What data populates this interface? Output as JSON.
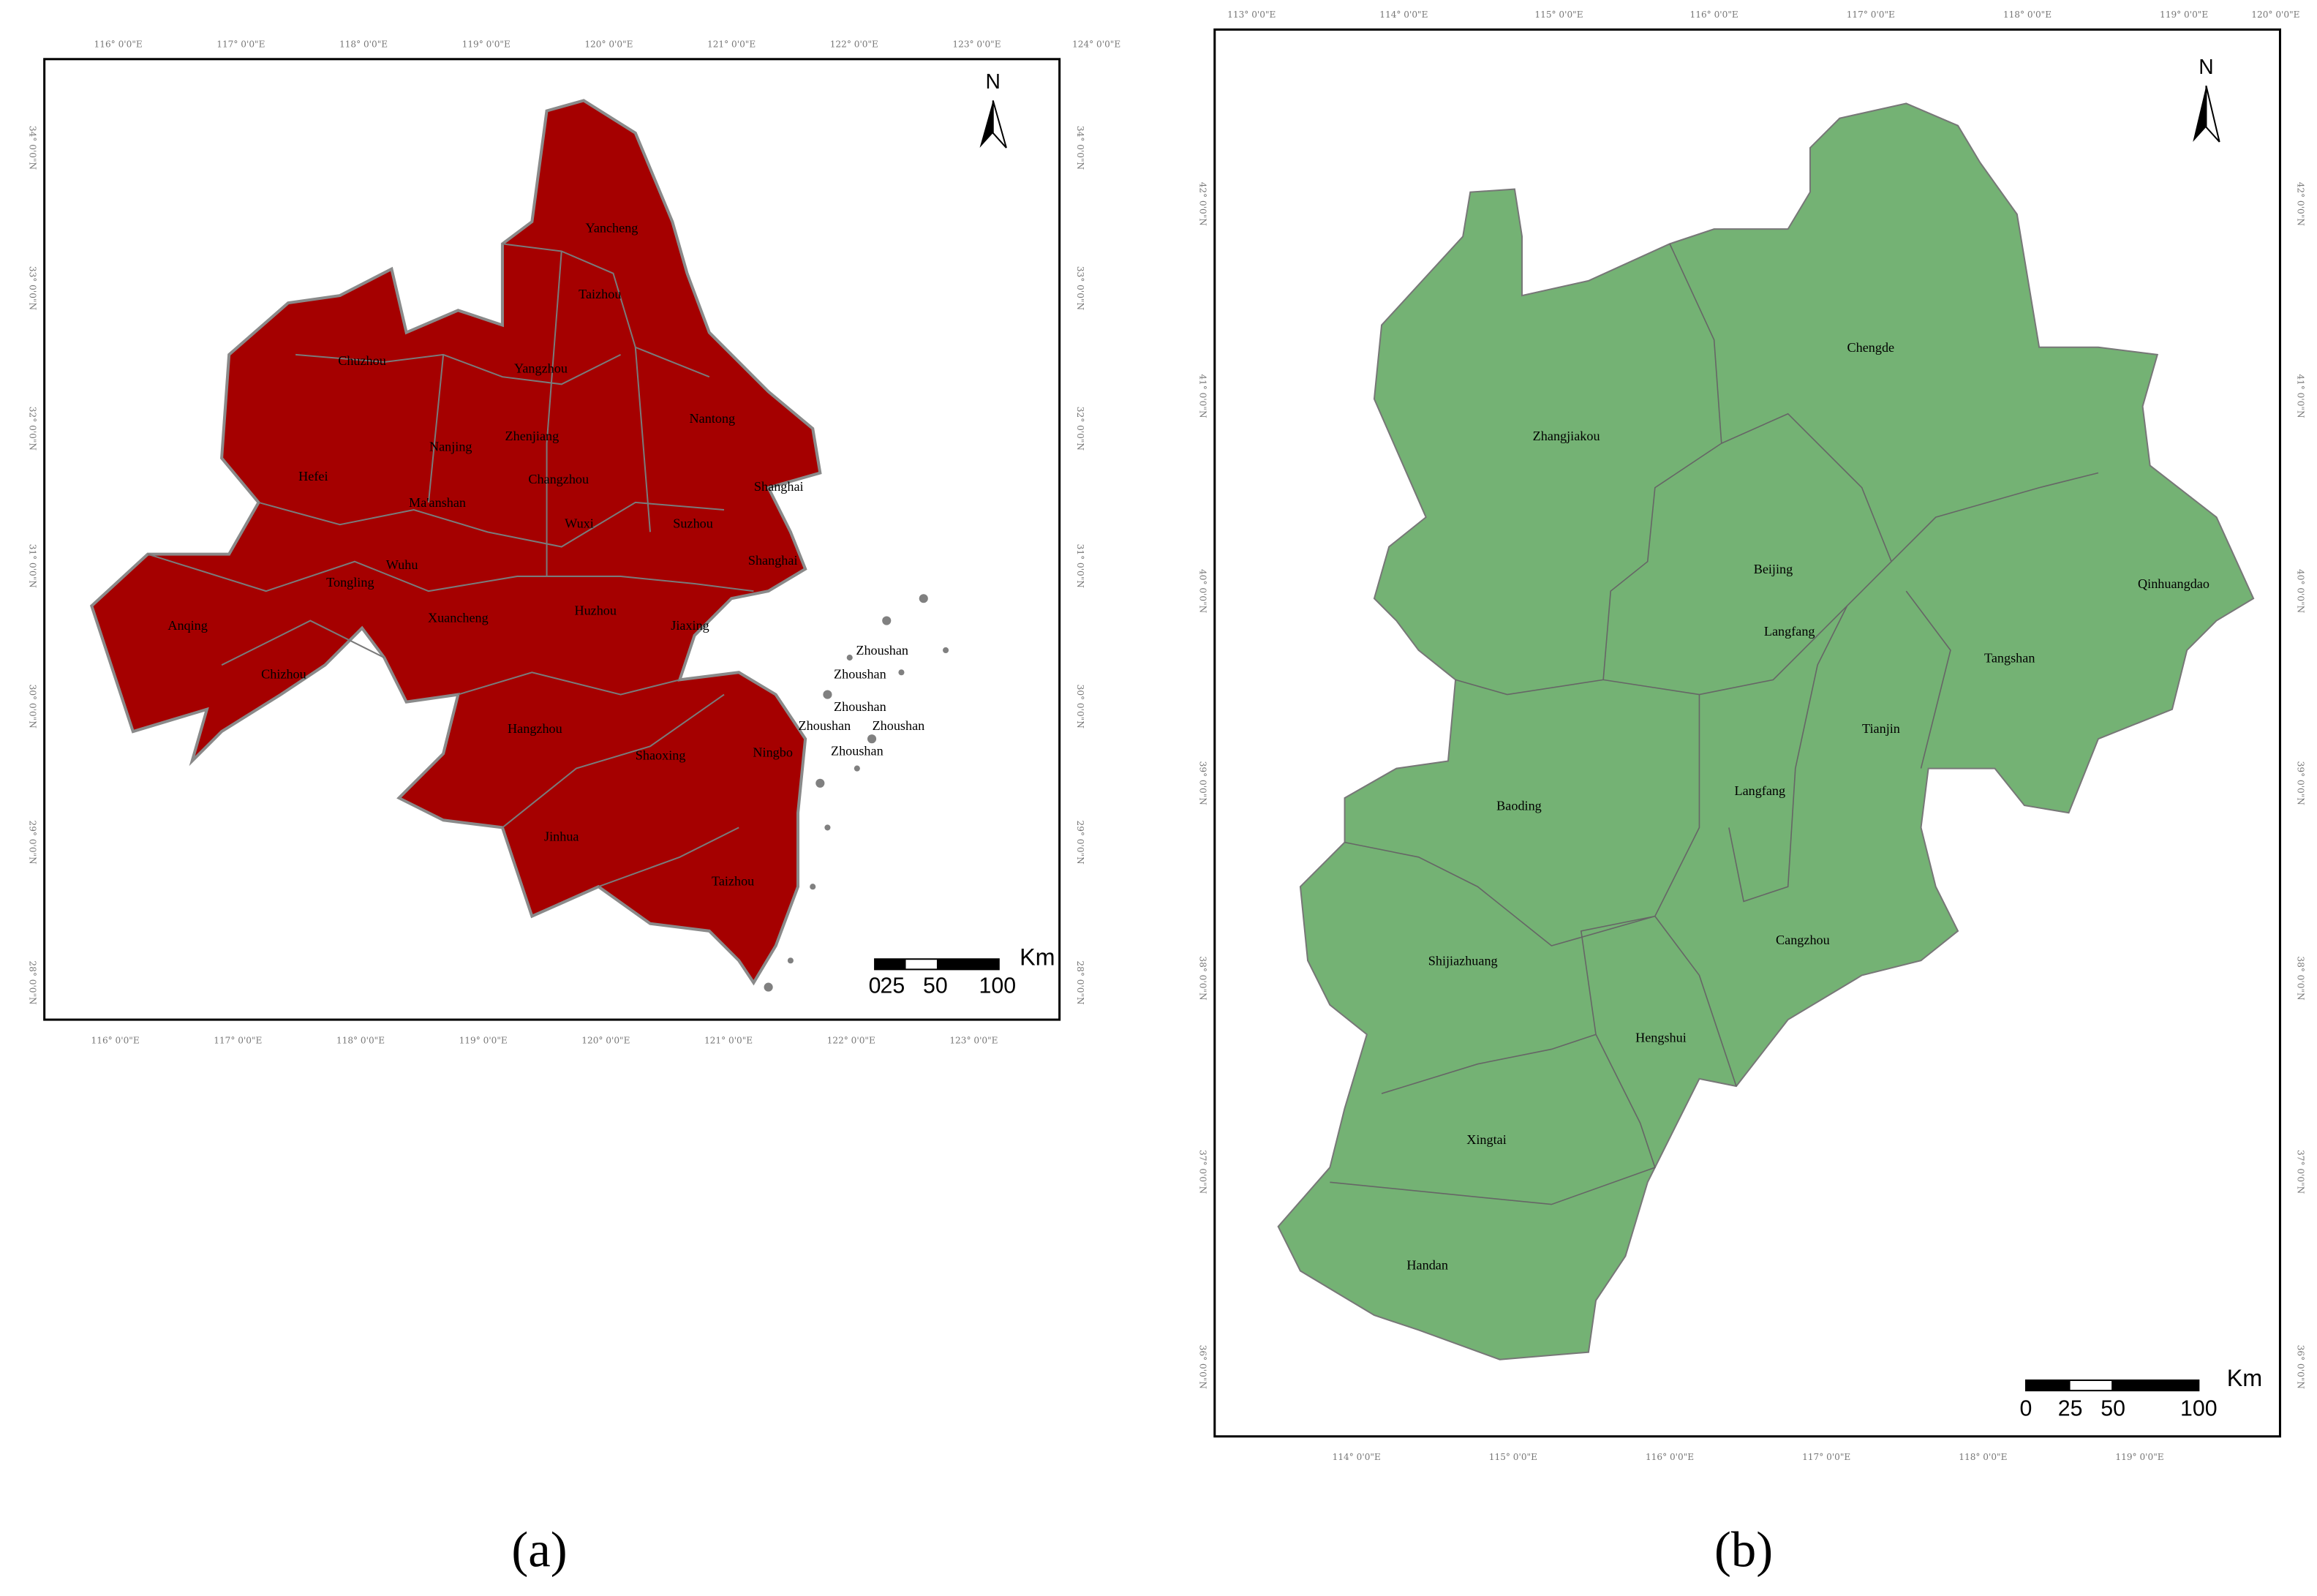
{
  "maps": [
    {
      "caption": "(a)",
      "top_ticks": [
        "116° 0'0\"E",
        "117° 0'0\"E",
        "118° 0'0\"E",
        "119° 0'0\"E",
        "120° 0'0\"E",
        "121° 0'0\"E",
        "122° 0'0\"E",
        "123° 0'0\"E",
        "124° 0'0\"E"
      ],
      "bottom_ticks": [
        "116° 0'0\"E",
        "117° 0'0\"E",
        "118° 0'0\"E",
        "119° 0'0\"E",
        "120° 0'0\"E",
        "121° 0'0\"E",
        "122° 0'0\"E",
        "123° 0'0\"E"
      ],
      "left_ticks": [
        "34° 0'0\"N",
        "33° 0'0\"N",
        "32° 0'0\"N",
        "31° 0'0\"N",
        "30° 0'0\"N",
        "29° 0'0\"N",
        "28° 0'0\"N"
      ],
      "right_ticks": [
        "34° 0'0\"N",
        "33° 0'0\"N",
        "32° 0'0\"N",
        "31° 0'0\"N",
        "30° 0'0\"N",
        "29° 0'0\"N",
        "28° 0'0\"N"
      ],
      "north": "N",
      "scale_unit": "Km",
      "scale_labels": [
        "0",
        "25",
        "50",
        "100"
      ],
      "regions": [
        "Yancheng",
        "Taizhou",
        "Chuzhou",
        "Yangzhou",
        "Nantong",
        "Nanjing",
        "Zhenjiang",
        "Changzhou",
        "Shanghai",
        "Hefei",
        "Ma'anshan",
        "Wuxi",
        "Suzhou",
        "Wuhu",
        "Shanghai",
        "Tongling",
        "Xuancheng",
        "Huzhou",
        "Anqing",
        "Jiaxing",
        "Zhoushan",
        "Chizhou",
        "Zhoushan",
        "Zhoushan",
        "Hangzhou",
        "Zhoushan",
        "Zhoushan",
        "Shaoxing",
        "Ningbo",
        "Zhoushan",
        "Jinhua",
        "Taizhou"
      ]
    },
    {
      "caption": "(b)",
      "top_ticks": [
        "113° 0'0\"E",
        "114° 0'0\"E",
        "115° 0'0\"E",
        "116° 0'0\"E",
        "117° 0'0\"E",
        "118° 0'0\"E",
        "119° 0'0\"E",
        "120° 0'0\"E"
      ],
      "bottom_ticks": [
        "114° 0'0\"E",
        "115° 0'0\"E",
        "116° 0'0\"E",
        "117° 0'0\"E",
        "118° 0'0\"E",
        "119° 0'0\"E"
      ],
      "left_ticks": [
        "42° 0'0\"N",
        "41° 0'0\"N",
        "40° 0'0\"N",
        "39° 0'0\"N",
        "38° 0'0\"N",
        "37° 0'0\"N",
        "36° 0'0\"N"
      ],
      "right_ticks": [
        "42° 0'0\"N",
        "41° 0'0\"N",
        "40° 0'0\"N",
        "39° 0'0\"N",
        "38° 0'0\"N",
        "37° 0'0\"N",
        "36° 0'0\"N"
      ],
      "north": "N",
      "scale_unit": "Km",
      "scale_labels": [
        "0",
        "25",
        "50",
        "100"
      ],
      "regions": [
        "Chengde",
        "Zhangjiakou",
        "Beijing",
        "Qinhuangdao",
        "Langfang",
        "Tangshan",
        "Tianjin",
        "Baoding",
        "Langfang",
        "Shijiazhuang",
        "Cangzhou",
        "Hengshui",
        "Xingtai",
        "Handan"
      ]
    }
  ]
}
